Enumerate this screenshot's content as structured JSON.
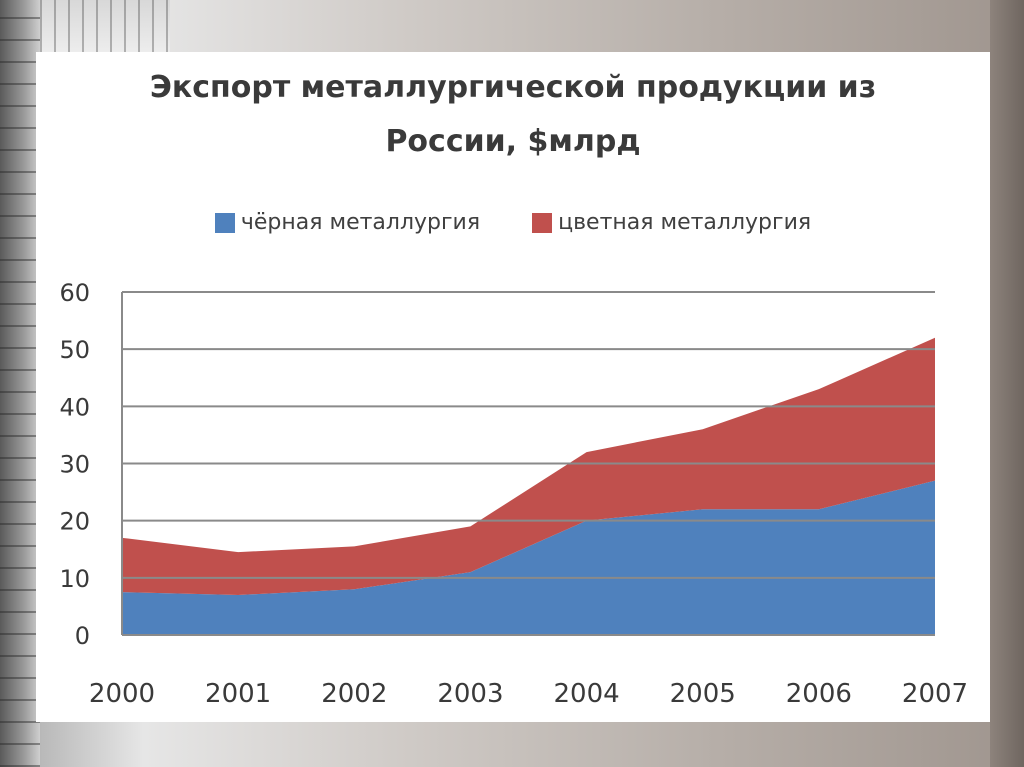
{
  "chart_data": {
    "type": "area",
    "stacked": true,
    "title_line1": "Экспорт металлургической продукции из",
    "title_line2": "России, $млрд",
    "x": [
      "2000",
      "2001",
      "2002",
      "2003",
      "2004",
      "2005",
      "2006",
      "2007"
    ],
    "series": [
      {
        "name": "чёрная металлургия",
        "color": "#4f81bd",
        "values": [
          7.5,
          7,
          8,
          11,
          20,
          22,
          22,
          27
        ]
      },
      {
        "name": "цветная металлургия",
        "color": "#c0504d",
        "values": [
          9.5,
          7.5,
          7.5,
          8,
          12,
          14,
          21,
          25
        ]
      }
    ],
    "ylim": [
      0,
      60
    ],
    "yticks": [
      "0",
      "10",
      "20",
      "30",
      "40",
      "50",
      "60"
    ],
    "grid": true,
    "legend_position": "top"
  }
}
